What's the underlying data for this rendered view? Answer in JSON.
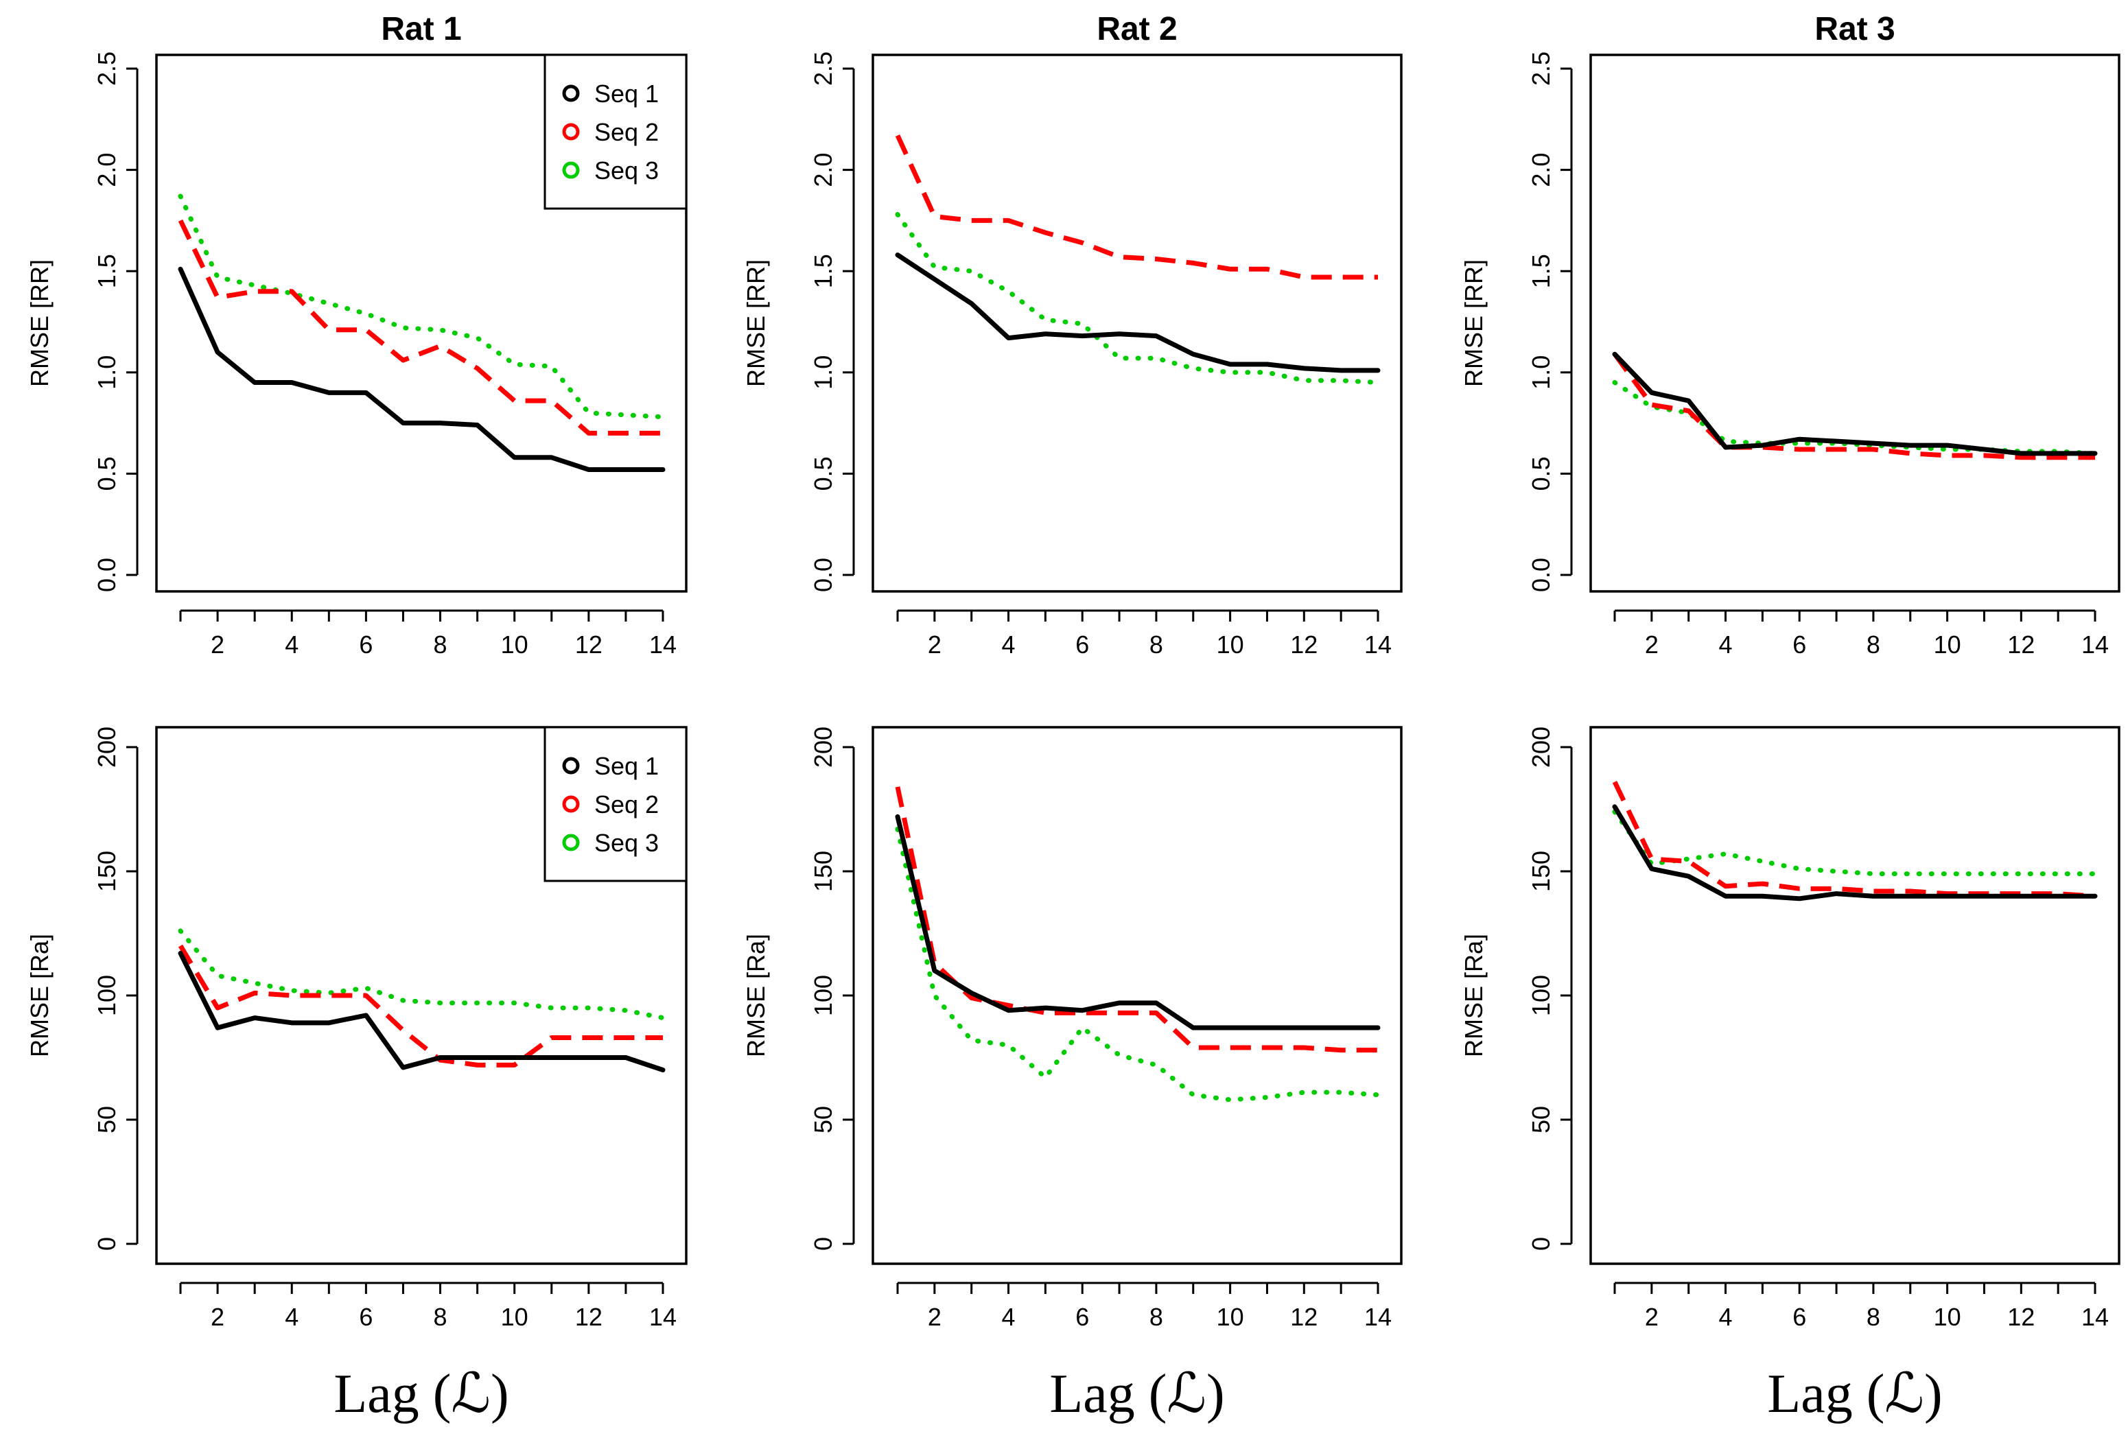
{
  "figure": {
    "column_titles": [
      "Rat 1",
      "Rat 2",
      "Rat 3"
    ],
    "xlabel": "Lag (ℒ)",
    "series_styles": {
      "Seq 1": {
        "color": "#000000",
        "dash": "solid"
      },
      "Seq 2": {
        "color": "#ff0000",
        "dash": "dashed"
      },
      "Seq 3": {
        "color": "#00cc00",
        "dash": "dotted"
      }
    }
  },
  "chart_data": [
    {
      "type": "line",
      "id": "rat1-rr",
      "title": "Rat 1",
      "ylabel": "RMSE [RR]",
      "xlim": [
        1,
        14
      ],
      "ylim": [
        0,
        2.5
      ],
      "xticks": [
        "2",
        "4",
        "6",
        "8",
        "10",
        "12",
        "14"
      ],
      "yticks": [
        "0.0",
        "0.5",
        "1.0",
        "1.5",
        "2.0",
        "2.5"
      ],
      "legend": "top-right",
      "x": [
        1,
        2,
        3,
        4,
        5,
        6,
        7,
        8,
        9,
        10,
        11,
        12,
        13,
        14
      ],
      "series": [
        {
          "name": "Seq 1",
          "values": [
            1.51,
            1.1,
            0.95,
            0.95,
            0.9,
            0.9,
            0.75,
            0.75,
            0.74,
            0.58,
            0.58,
            0.52,
            0.52,
            0.52
          ]
        },
        {
          "name": "Seq 2",
          "values": [
            1.75,
            1.37,
            1.4,
            1.4,
            1.21,
            1.21,
            1.06,
            1.13,
            1.02,
            0.86,
            0.86,
            0.7,
            0.7,
            0.7
          ]
        },
        {
          "name": "Seq 3",
          "values": [
            1.87,
            1.47,
            1.43,
            1.39,
            1.34,
            1.29,
            1.22,
            1.21,
            1.17,
            1.04,
            1.03,
            0.8,
            0.79,
            0.78
          ]
        }
      ]
    },
    {
      "type": "line",
      "id": "rat2-rr",
      "title": "Rat 2",
      "ylabel": "RMSE [RR]",
      "xlim": [
        1,
        14
      ],
      "ylim": [
        0,
        2.5
      ],
      "xticks": [
        "2",
        "4",
        "6",
        "8",
        "10",
        "12",
        "14"
      ],
      "yticks": [
        "0.0",
        "0.5",
        "1.0",
        "1.5",
        "2.0",
        "2.5"
      ],
      "legend": "none",
      "x": [
        1,
        2,
        3,
        4,
        5,
        6,
        7,
        8,
        9,
        10,
        11,
        12,
        13,
        14
      ],
      "series": [
        {
          "name": "Seq 1",
          "values": [
            1.58,
            1.46,
            1.34,
            1.17,
            1.19,
            1.18,
            1.19,
            1.18,
            1.09,
            1.04,
            1.04,
            1.02,
            1.01,
            1.01
          ]
        },
        {
          "name": "Seq 2",
          "values": [
            2.17,
            1.77,
            1.75,
            1.75,
            1.69,
            1.64,
            1.57,
            1.56,
            1.54,
            1.51,
            1.51,
            1.47,
            1.47,
            1.47
          ]
        },
        {
          "name": "Seq 3",
          "values": [
            1.78,
            1.52,
            1.5,
            1.4,
            1.26,
            1.24,
            1.07,
            1.07,
            1.02,
            1.0,
            1.0,
            0.96,
            0.96,
            0.95
          ]
        }
      ]
    },
    {
      "type": "line",
      "id": "rat3-rr",
      "title": "Rat 3",
      "ylabel": "RMSE [RR]",
      "xlim": [
        1,
        14
      ],
      "ylim": [
        0,
        2.5
      ],
      "xticks": [
        "2",
        "4",
        "6",
        "8",
        "10",
        "12",
        "14"
      ],
      "yticks": [
        "0.0",
        "0.5",
        "1.0",
        "1.5",
        "2.0",
        "2.5"
      ],
      "legend": "none",
      "x": [
        1,
        2,
        3,
        4,
        5,
        6,
        7,
        8,
        9,
        10,
        11,
        12,
        13,
        14
      ],
      "series": [
        {
          "name": "Seq 1",
          "values": [
            1.09,
            0.9,
            0.86,
            0.63,
            0.64,
            0.67,
            0.66,
            0.65,
            0.64,
            0.64,
            0.62,
            0.6,
            0.6,
            0.6
          ]
        },
        {
          "name": "Seq 2",
          "values": [
            1.09,
            0.84,
            0.81,
            0.63,
            0.63,
            0.62,
            0.62,
            0.62,
            0.6,
            0.59,
            0.59,
            0.58,
            0.58,
            0.58
          ]
        },
        {
          "name": "Seq 3",
          "values": [
            0.95,
            0.83,
            0.8,
            0.66,
            0.65,
            0.65,
            0.65,
            0.64,
            0.63,
            0.62,
            0.62,
            0.61,
            0.61,
            0.6
          ]
        }
      ]
    },
    {
      "type": "line",
      "id": "rat1-ra",
      "title": "",
      "ylabel": "RMSE [Ra]",
      "xlim": [
        1,
        14
      ],
      "ylim": [
        0,
        200
      ],
      "xticks": [
        "2",
        "4",
        "6",
        "8",
        "10",
        "12",
        "14"
      ],
      "yticks": [
        "0",
        "50",
        "100",
        "150",
        "200"
      ],
      "legend": "top-right",
      "x": [
        1,
        2,
        3,
        4,
        5,
        6,
        7,
        8,
        9,
        10,
        11,
        12,
        13,
        14
      ],
      "series": [
        {
          "name": "Seq 1",
          "values": [
            117,
            87,
            91,
            89,
            89,
            92,
            71,
            75,
            75,
            75,
            75,
            75,
            75,
            70
          ]
        },
        {
          "name": "Seq 2",
          "values": [
            120,
            95,
            101,
            100,
            100,
            100,
            86,
            74,
            72,
            72,
            83,
            83,
            83,
            83
          ]
        },
        {
          "name": "Seq 3",
          "values": [
            126,
            108,
            105,
            102,
            101,
            103,
            98,
            97,
            97,
            97,
            95,
            95,
            94,
            91
          ]
        }
      ]
    },
    {
      "type": "line",
      "id": "rat2-ra",
      "title": "",
      "ylabel": "RMSE [Ra]",
      "xlim": [
        1,
        14
      ],
      "ylim": [
        0,
        200
      ],
      "xticks": [
        "2",
        "4",
        "6",
        "8",
        "10",
        "12",
        "14"
      ],
      "yticks": [
        "0",
        "50",
        "100",
        "150",
        "200"
      ],
      "legend": "none",
      "x": [
        1,
        2,
        3,
        4,
        5,
        6,
        7,
        8,
        9,
        10,
        11,
        12,
        13,
        14
      ],
      "series": [
        {
          "name": "Seq 1",
          "values": [
            172,
            110,
            101,
            94,
            95,
            94,
            97,
            97,
            87,
            87,
            87,
            87,
            87,
            87
          ]
        },
        {
          "name": "Seq 2",
          "values": [
            184,
            113,
            99,
            96,
            93,
            93,
            93,
            93,
            79,
            79,
            79,
            79,
            78,
            78
          ]
        },
        {
          "name": "Seq 3",
          "values": [
            167,
            100,
            82,
            80,
            67,
            87,
            76,
            72,
            60,
            58,
            59,
            61,
            61,
            60
          ]
        }
      ]
    },
    {
      "type": "line",
      "id": "rat3-ra",
      "title": "",
      "ylabel": "RMSE [Ra]",
      "xlim": [
        1,
        14
      ],
      "ylim": [
        0,
        200
      ],
      "xticks": [
        "2",
        "4",
        "6",
        "8",
        "10",
        "12",
        "14"
      ],
      "yticks": [
        "0",
        "50",
        "100",
        "150",
        "200"
      ],
      "legend": "none",
      "x": [
        1,
        2,
        3,
        4,
        5,
        6,
        7,
        8,
        9,
        10,
        11,
        12,
        13,
        14
      ],
      "series": [
        {
          "name": "Seq 1",
          "values": [
            176,
            151,
            148,
            140,
            140,
            139,
            141,
            140,
            140,
            140,
            140,
            140,
            140,
            140
          ]
        },
        {
          "name": "Seq 2",
          "values": [
            186,
            155,
            154,
            144,
            145,
            143,
            143,
            142,
            142,
            141,
            141,
            141,
            141,
            140
          ]
        },
        {
          "name": "Seq 3",
          "values": [
            174,
            153,
            155,
            157,
            154,
            151,
            150,
            149,
            149,
            149,
            149,
            149,
            149,
            149
          ]
        }
      ]
    }
  ]
}
